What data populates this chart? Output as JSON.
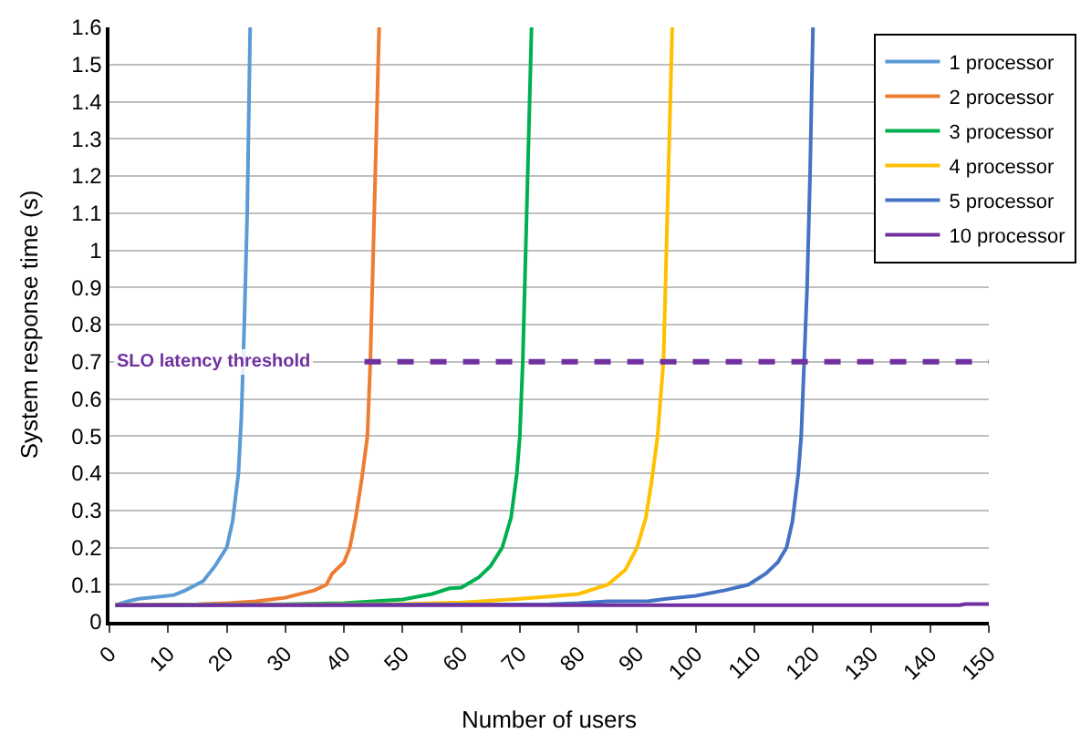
{
  "chart_data": {
    "type": "line",
    "xlabel": "Number of users",
    "ylabel": "System response time (s)",
    "xlim": [
      0,
      150
    ],
    "ylim": [
      0,
      1.6
    ],
    "xticks": [
      0,
      10,
      20,
      30,
      40,
      50,
      60,
      70,
      80,
      90,
      100,
      110,
      120,
      130,
      140,
      150
    ],
    "yticks": [
      0,
      0.1,
      0.2,
      0.3,
      0.4,
      0.5,
      0.6,
      0.7,
      0.8,
      0.9,
      1,
      1.1,
      1.2,
      1.3,
      1.4,
      1.5,
      1.6
    ],
    "grid": "y",
    "legend": "top right",
    "marker": "none",
    "line_style": "solid",
    "ref_lines": [
      {
        "axis": "y",
        "value": 0.7,
        "label": "SLO latency threshold",
        "color": "#7030a0",
        "line_style": "dashed"
      }
    ],
    "series": [
      {
        "name": "1 processor",
        "color": "#5b9bd5",
        "x": [
          1,
          3,
          5,
          8,
          11,
          13,
          16,
          18,
          20,
          21,
          22,
          22.5,
          23,
          23.5,
          24
        ],
        "values": [
          0.045,
          0.055,
          0.062,
          0.067,
          0.072,
          0.085,
          0.11,
          0.15,
          0.2,
          0.27,
          0.4,
          0.55,
          0.8,
          1.1,
          1.6
        ]
      },
      {
        "name": "2 processor",
        "color": "#ed7d31",
        "x": [
          1,
          15,
          20,
          25,
          30,
          35,
          37,
          38,
          40,
          41,
          42,
          43,
          44,
          44.5,
          45,
          45.5,
          46
        ],
        "values": [
          0.045,
          0.047,
          0.05,
          0.055,
          0.065,
          0.085,
          0.1,
          0.13,
          0.16,
          0.2,
          0.28,
          0.38,
          0.5,
          0.7,
          1.0,
          1.3,
          1.6
        ]
      },
      {
        "name": "3 processor",
        "color": "#00b050",
        "x": [
          1,
          30,
          40,
          50,
          55,
          58,
          60,
          63,
          65,
          67,
          68.5,
          69.5,
          70,
          70.5,
          71,
          71.5,
          72
        ],
        "values": [
          0.045,
          0.047,
          0.05,
          0.06,
          0.075,
          0.09,
          0.092,
          0.12,
          0.15,
          0.2,
          0.28,
          0.4,
          0.5,
          0.7,
          1.0,
          1.3,
          1.6
        ]
      },
      {
        "name": "4 processor",
        "color": "#ffc000",
        "x": [
          1,
          50,
          60,
          70,
          75,
          80,
          85,
          88,
          90,
          91.5,
          92.5,
          93.5,
          94.5,
          95,
          95.5,
          96
        ],
        "values": [
          0.045,
          0.048,
          0.052,
          0.062,
          0.068,
          0.075,
          0.1,
          0.14,
          0.2,
          0.28,
          0.38,
          0.5,
          0.7,
          1.0,
          1.3,
          1.6
        ]
      },
      {
        "name": "5 processor",
        "color": "#4472c4",
        "x": [
          1,
          75,
          80,
          85,
          92,
          95,
          100,
          105,
          109,
          112,
          114,
          115.5,
          116.5,
          117.5,
          118,
          118.5,
          119,
          119.5,
          120
        ],
        "values": [
          0.045,
          0.047,
          0.05,
          0.055,
          0.056,
          0.062,
          0.07,
          0.085,
          0.1,
          0.13,
          0.16,
          0.2,
          0.27,
          0.4,
          0.5,
          0.7,
          0.9,
          1.2,
          1.6
        ]
      },
      {
        "name": "10 processor",
        "color": "#7030a0",
        "x": [
          1,
          145,
          146,
          150
        ],
        "values": [
          0.045,
          0.045,
          0.048,
          0.048
        ]
      }
    ]
  }
}
